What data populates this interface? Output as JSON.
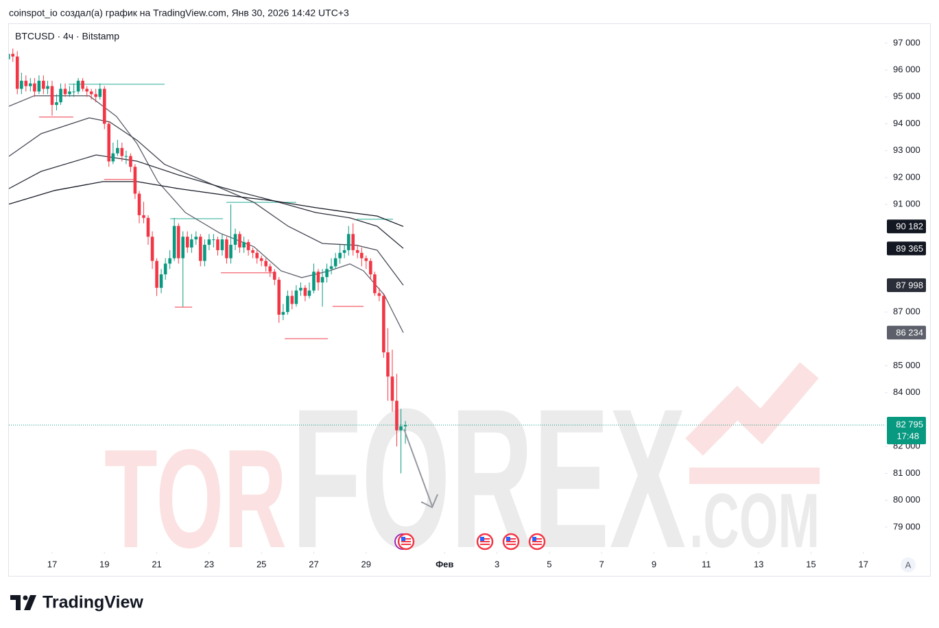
{
  "chart_data": {
    "type": "candlestick",
    "header": "coinspot_io создал(а) график на TradingView.com, Янв 30, 2026 14:42 UTC+3",
    "title": "BTCUSD · 4ч · Bitstamp",
    "brand": "TradingView",
    "scale_button": "A",
    "watermark": [
      "TOR",
      "FOREX",
      ".COM"
    ],
    "up_color": "#089981",
    "down_color": "#f23645",
    "xlim": [
      15.35,
      48.82
    ],
    "ylim": [
      78080,
      97710
    ],
    "xticks": [
      17,
      19,
      21,
      23,
      25,
      27,
      29,
      {
        "value": 32,
        "label": "Фев"
      },
      {
        "value": 34,
        "label": "3"
      },
      {
        "value": 36,
        "label": "5"
      },
      {
        "value": 38,
        "label": "7"
      },
      {
        "value": 40,
        "label": "9"
      },
      {
        "value": 42,
        "label": "11"
      },
      {
        "value": 44,
        "label": "13"
      },
      {
        "value": 46,
        "label": "15"
      },
      {
        "value": 48,
        "label": "17"
      }
    ],
    "yticks": [
      {
        "value": 97000,
        "label": "97 000"
      },
      {
        "value": 96000,
        "label": "96 000"
      },
      {
        "value": 95000,
        "label": "95 000"
      },
      {
        "value": 94000,
        "label": "94 000"
      },
      {
        "value": 93000,
        "label": "93 000"
      },
      {
        "value": 92000,
        "label": "92 000"
      },
      {
        "value": 91000,
        "label": "91 000"
      },
      {
        "value": 87000,
        "label": "87 000"
      },
      {
        "value": 85000,
        "label": "85 000"
      },
      {
        "value": 84000,
        "label": "84 000"
      },
      {
        "value": 82000,
        "label": "82 000"
      },
      {
        "value": 81000,
        "label": "81 000"
      },
      {
        "value": 80000,
        "label": "80 000"
      },
      {
        "value": 79000,
        "label": "79 000"
      }
    ],
    "grid": false,
    "x": [
      15.33,
      15.5,
      15.67,
      15.83,
      16,
      16.17,
      16.33,
      16.5,
      16.67,
      16.83,
      17,
      17.17,
      17.33,
      17.5,
      17.67,
      17.83,
      18,
      18.17,
      18.33,
      18.5,
      18.67,
      18.83,
      19,
      19.17,
      19.33,
      19.5,
      19.67,
      19.83,
      20,
      20.17,
      20.33,
      20.5,
      20.67,
      20.83,
      21,
      21.17,
      21.33,
      21.5,
      21.67,
      21.83,
      22,
      22.17,
      22.33,
      22.5,
      22.67,
      22.83,
      23,
      23.17,
      23.33,
      23.5,
      23.67,
      23.83,
      24,
      24.17,
      24.33,
      24.5,
      24.67,
      24.83,
      25,
      25.17,
      25.33,
      25.5,
      25.67,
      25.83,
      26,
      26.17,
      26.33,
      26.5,
      26.67,
      26.83,
      27,
      27.17,
      27.33,
      27.5,
      27.67,
      27.83,
      28,
      28.17,
      28.33,
      28.5,
      28.67,
      28.83,
      29,
      29.17,
      29.33,
      29.5,
      29.67,
      29.83,
      30,
      30.17,
      30.33,
      30.5
    ],
    "open": [
      96400,
      96600,
      96500,
      95300,
      95600,
      95400,
      95500,
      95200,
      95600,
      95300,
      95400,
      94700,
      94800,
      95300,
      95100,
      95200,
      95200,
      95600,
      95300,
      95200,
      95100,
      95000,
      95300,
      94000,
      92600,
      92900,
      93100,
      92800,
      92800,
      92400,
      91400,
      90600,
      90500,
      89800,
      88900,
      87900,
      88400,
      88800,
      89000,
      90200,
      89000,
      89800,
      89400,
      89700,
      89800,
      88900,
      89500,
      89700,
      89700,
      89300,
      89700,
      89000,
      89500,
      89900,
      89400,
      89600,
      89300,
      89200,
      89000,
      88900,
      88700,
      88500,
      88200,
      86900,
      87000,
      87600,
      87300,
      87800,
      87900,
      87600,
      87800,
      88500,
      88100,
      88300,
      88600,
      88700,
      89000,
      89200,
      89300,
      89900,
      89300,
      89200,
      89000,
      88900,
      88400,
      87700,
      87600,
      85500,
      84600,
      83700,
      82600,
      82750
    ],
    "high": [
      97100,
      96800,
      96700,
      95900,
      95800,
      95700,
      95700,
      95800,
      95800,
      95600,
      95600,
      95100,
      95500,
      95500,
      95400,
      95500,
      95700,
      95700,
      95400,
      95300,
      95300,
      95500,
      95400,
      94100,
      93300,
      93400,
      93300,
      93000,
      92900,
      92500,
      91500,
      91100,
      90600,
      90000,
      89000,
      88600,
      89000,
      89300,
      90500,
      90300,
      90000,
      90000,
      89900,
      90000,
      89900,
      89700,
      89900,
      89900,
      89800,
      89900,
      89800,
      91000,
      90100,
      90000,
      89800,
      89700,
      89400,
      89300,
      89100,
      89000,
      88800,
      88600,
      88300,
      87300,
      87800,
      87800,
      88000,
      88100,
      88000,
      88100,
      88800,
      88600,
      88600,
      88800,
      89000,
      89200,
      89500,
      89500,
      90200,
      90300,
      89500,
      89400,
      89100,
      89000,
      88500,
      87900,
      87700,
      86400,
      85600,
      84700,
      83400,
      82950
    ],
    "low": [
      96300,
      96300,
      95100,
      95100,
      95200,
      95200,
      95000,
      95100,
      95100,
      95100,
      94300,
      94500,
      94700,
      95000,
      95000,
      95000,
      95100,
      95200,
      95000,
      94900,
      94800,
      94900,
      93800,
      92400,
      92500,
      92800,
      92600,
      92500,
      92200,
      91200,
      90300,
      90300,
      89500,
      88600,
      87600,
      87700,
      88200,
      88600,
      88900,
      88800,
      87200,
      89200,
      89200,
      89500,
      88700,
      88700,
      89300,
      89400,
      89100,
      89100,
      88800,
      88800,
      89300,
      89200,
      89200,
      89100,
      89000,
      88800,
      88700,
      88500,
      88300,
      88000,
      86600,
      86700,
      86900,
      87100,
      87200,
      87600,
      87400,
      87500,
      87700,
      87800,
      87200,
      88100,
      88400,
      88600,
      88800,
      89000,
      89100,
      89100,
      89000,
      88700,
      88600,
      88200,
      87600,
      87400,
      85300,
      83700,
      83300,
      82000,
      81000,
      82100
    ],
    "close": [
      96600,
      96500,
      95300,
      95600,
      95400,
      95500,
      95200,
      95600,
      95300,
      95400,
      94700,
      94800,
      95300,
      95100,
      95200,
      95200,
      95600,
      95300,
      95200,
      95100,
      95000,
      95300,
      94000,
      92600,
      92900,
      93100,
      92800,
      92800,
      92400,
      91400,
      90600,
      90500,
      89800,
      88900,
      87900,
      88400,
      88800,
      89000,
      90200,
      89000,
      89800,
      89400,
      89700,
      89800,
      88900,
      89500,
      89700,
      89700,
      89300,
      89700,
      89000,
      89500,
      89900,
      89400,
      89600,
      89300,
      89200,
      89000,
      88900,
      88700,
      88500,
      88200,
      86900,
      87000,
      87600,
      87300,
      87800,
      87900,
      87600,
      87800,
      88500,
      88100,
      88300,
      88600,
      88700,
      89000,
      89200,
      89300,
      89900,
      89300,
      89200,
      89000,
      88900,
      88400,
      87700,
      87600,
      85500,
      84600,
      83700,
      82600,
      82750,
      82795
    ],
    "last_price_label": "82 795",
    "countdown": "17:48",
    "ma_lines": [
      {
        "color": "#5d606b",
        "x": [
          15.35,
          16.32,
          18.42,
          19.46,
          20.25,
          21.04,
          22.09,
          23.4,
          24.71,
          25.75,
          26.54,
          27.59,
          28.38,
          28.9,
          29.69,
          30.42
        ],
        "values": [
          94650,
          95040,
          95040,
          94270,
          93250,
          91850,
          90700,
          89940,
          89430,
          88530,
          88280,
          88530,
          88790,
          88530,
          87640,
          86234
        ],
        "last_label": "86 234",
        "label_color": "#5d606b"
      },
      {
        "color": "#434651",
        "x": [
          15.35,
          16.58,
          18.42,
          19.2,
          20.25,
          21.3,
          22.87,
          24.71,
          26.02,
          27.33,
          28.64,
          29.42,
          30.42
        ],
        "values": [
          92790,
          93630,
          94220,
          94070,
          93380,
          92490,
          91850,
          91080,
          90190,
          89550,
          89480,
          89300,
          87998
        ],
        "last_label": "87 998",
        "label_color": "#2a2e39"
      },
      {
        "color": "#2a2e39",
        "x": [
          15.35,
          16.58,
          18.68,
          20.25,
          21.82,
          23.66,
          25.49,
          27.07,
          28.38,
          29.42,
          30.42
        ],
        "values": [
          91590,
          92230,
          92840,
          92610,
          92100,
          91590,
          91130,
          90700,
          90500,
          90190,
          89365
        ],
        "last_label": "89 365",
        "label_color": "#131722"
      },
      {
        "color": "#131722",
        "x": [
          15.35,
          17.1,
          18.94,
          20.25,
          21.82,
          23.66,
          25.49,
          27.07,
          28.38,
          29.42,
          30.42
        ],
        "values": [
          91010,
          91520,
          91850,
          91850,
          91590,
          91340,
          91130,
          90880,
          90700,
          90570,
          90182
        ],
        "last_label": "90 182",
        "label_color": "#131722"
      }
    ],
    "levels": [
      {
        "color": "#22ab94",
        "x0": 17.63,
        "x1": 21.3,
        "value": 95470
      },
      {
        "color": "#f23645",
        "x0": 16.5,
        "x1": 17.81,
        "value": 94250
      },
      {
        "color": "#f23645",
        "x0": 18.99,
        "x1": 20.12,
        "value": 91930
      },
      {
        "color": "#22ab94",
        "x0": 21.51,
        "x1": 23.53,
        "value": 90470
      },
      {
        "color": "#22ab94",
        "x0": 23.66,
        "x1": 26.33,
        "value": 91080
      },
      {
        "color": "#f23645",
        "x0": 23.45,
        "x1": 25.44,
        "value": 88460
      },
      {
        "color": "#f23645",
        "x0": 21.69,
        "x1": 22.35,
        "value": 87180
      },
      {
        "color": "#f23645",
        "x0": 25.89,
        "x1": 27.54,
        "value": 86010
      },
      {
        "color": "#f23645",
        "x0": 27.72,
        "x1": 28.9,
        "value": 87210
      },
      {
        "color": "#22ab94",
        "x0": 28.64,
        "x1": 30.03,
        "value": 90450
      }
    ]
  }
}
